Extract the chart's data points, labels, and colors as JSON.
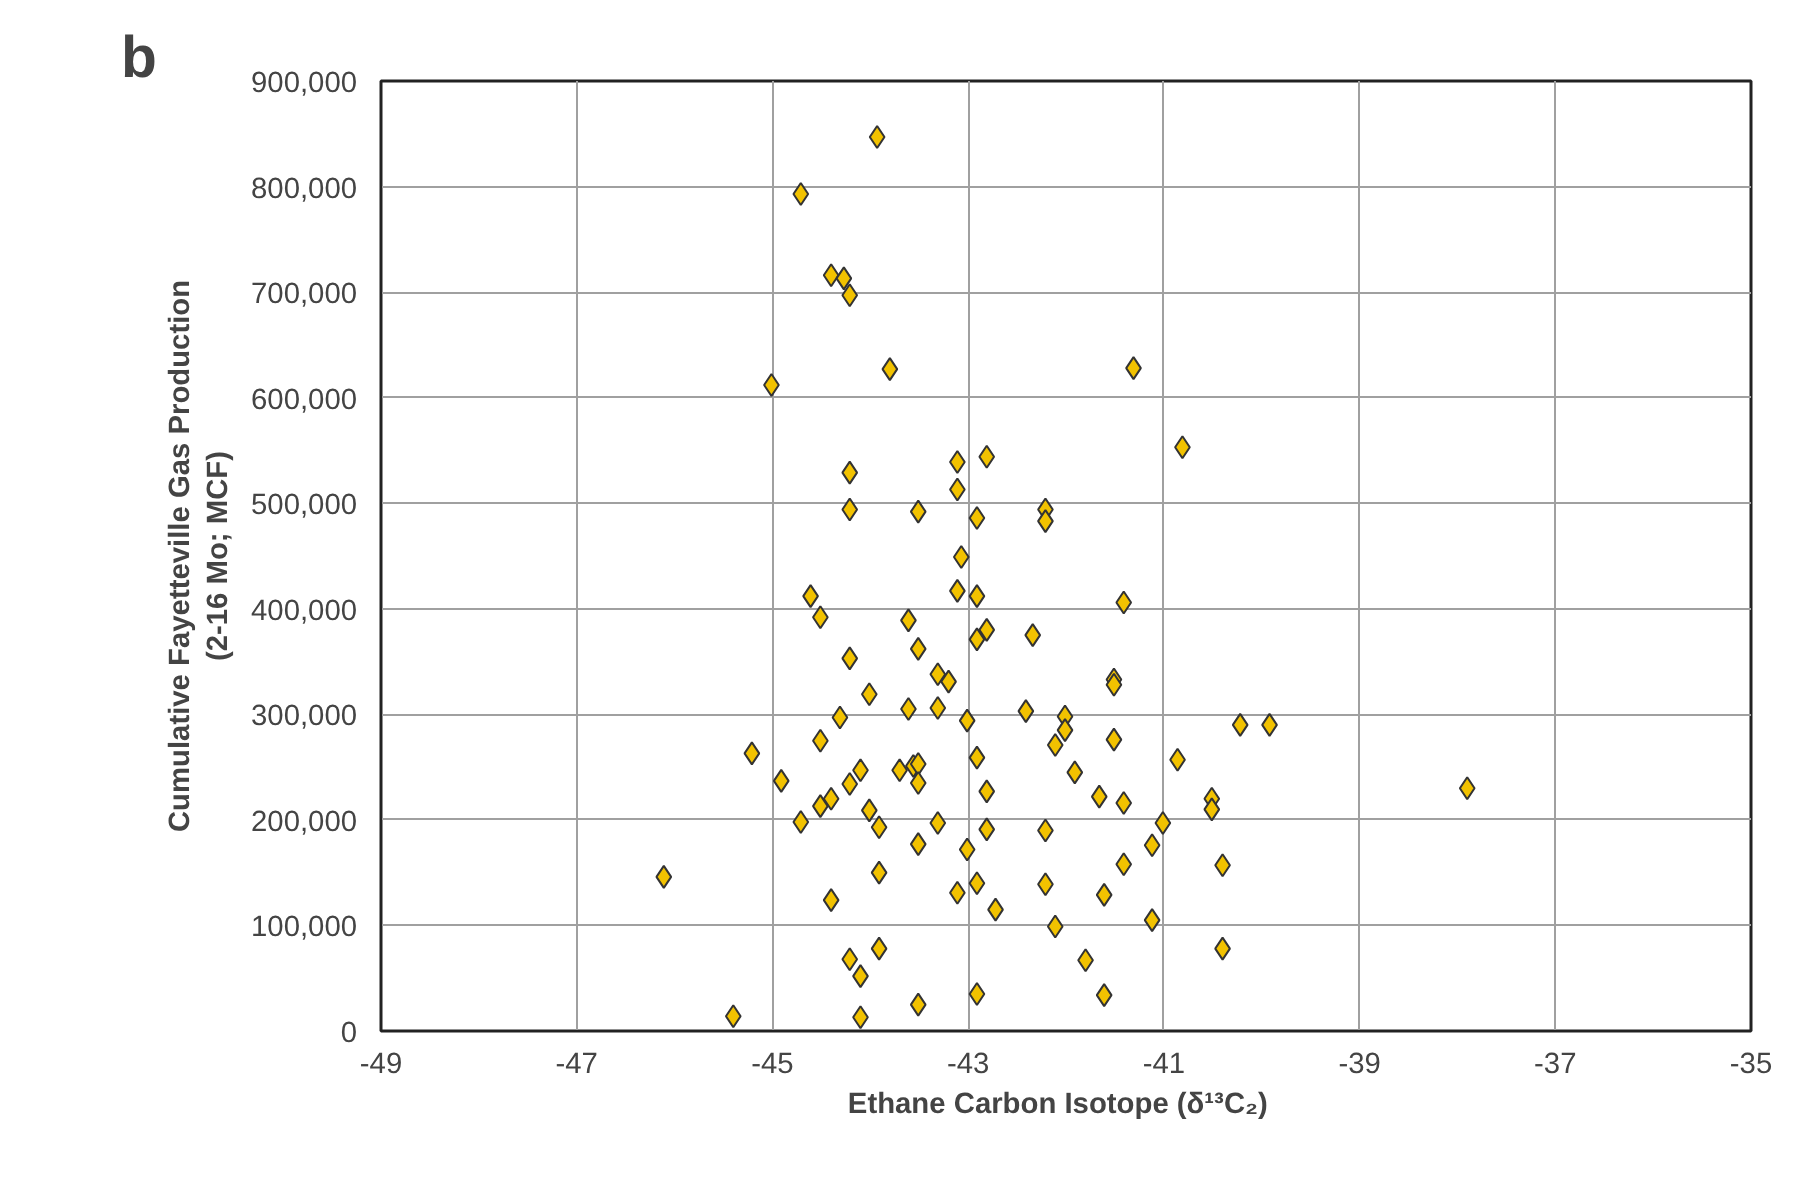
{
  "chart_data": {
    "type": "scatter",
    "title": "b",
    "xlabel": "Ethane Carbon Isotope   (δ¹³C₂)",
    "ylabel": "Cumulative Fayetteville Gas Production\n(2-16 Mo; MCF)",
    "xlim": [
      -49,
      -35
    ],
    "xticks": [
      -49,
      -47,
      -45,
      -43,
      -41,
      -39,
      -37,
      -35
    ],
    "ylim": [
      0,
      900000
    ],
    "yticks": [
      {
        "value": 0,
        "label": "0"
      },
      {
        "value": 100000,
        "label": "100,000"
      },
      {
        "value": 200000,
        "label": "200,000"
      },
      {
        "value": 300000,
        "label": "300,000"
      },
      {
        "value": 400000,
        "label": "400,000"
      },
      {
        "value": 500000,
        "label": "500,000"
      },
      {
        "value": 600000,
        "label": "600,000"
      },
      {
        "value": 700000,
        "label": "700,000"
      },
      {
        "value": 800000,
        "label": "800,000"
      },
      {
        "value": 900000,
        "label": "900,000"
      }
    ],
    "grid": true,
    "marker": "diamond",
    "series": [
      {
        "color": "#f2c200",
        "x": [
          -43.93,
          -44.71,
          -44.4,
          -44.27,
          -44.21,
          -45.01,
          -43.8,
          -41.31,
          -40.81,
          -43.11,
          -42.81,
          -44.21,
          -43.11,
          -44.21,
          -43.51,
          -42.91,
          -42.21,
          -42.21,
          -43.07,
          -44.61,
          -43.11,
          -42.91,
          -41.41,
          -44.51,
          -43.61,
          -42.81,
          -42.91,
          -42.34,
          -44.21,
          -43.51,
          -43.31,
          -43.2,
          -41.51,
          -41.51,
          -44.01,
          -44.31,
          -43.61,
          -43.31,
          -43.01,
          -42.41,
          -42.01,
          -42.01,
          -42.11,
          -40.22,
          -39.92,
          -45.21,
          -44.51,
          -41.51,
          -42.91,
          -40.86,
          -44.91,
          -44.1,
          -43.7,
          -43.56,
          -43.51,
          -44.21,
          -43.51,
          -41.91,
          -42.81,
          -37.9,
          -44.51,
          -44.4,
          -44.01,
          -44.71,
          -43.91,
          -43.31,
          -42.81,
          -42.21,
          -41.66,
          -41.41,
          -40.51,
          -40.51,
          -41.01,
          -43.51,
          -43.01,
          -41.12,
          -43.91,
          -41.41,
          -40.4,
          -46.11,
          -44.4,
          -43.11,
          -42.91,
          -42.21,
          -41.61,
          -42.72,
          -42.11,
          -41.12,
          -43.91,
          -44.21,
          -44.1,
          -41.8,
          -40.4,
          -45.4,
          -44.1,
          -43.51,
          -42.91,
          -41.61
        ],
        "values": [
          847000,
          793000,
          716000,
          713000,
          697000,
          612000,
          627000,
          628000,
          553000,
          539000,
          544000,
          529000,
          513000,
          494000,
          492000,
          486000,
          494000,
          483000,
          449000,
          412000,
          417000,
          412000,
          406000,
          392000,
          389000,
          380000,
          371000,
          375000,
          353000,
          362000,
          338000,
          331000,
          333000,
          328000,
          319000,
          297000,
          305000,
          306000,
          294000,
          303000,
          298000,
          285000,
          271000,
          290000,
          290000,
          263000,
          275000,
          276000,
          259000,
          257000,
          237000,
          247000,
          247000,
          251000,
          253000,
          234000,
          235000,
          245000,
          227000,
          230000,
          213000,
          220000,
          209000,
          198000,
          193000,
          197000,
          191000,
          190000,
          222000,
          216000,
          220000,
          210000,
          197000,
          177000,
          172000,
          176000,
          150000,
          158000,
          157000,
          146000,
          124000,
          131000,
          140000,
          139000,
          129000,
          115000,
          99000,
          105000,
          78000,
          68000,
          52000,
          67000,
          78000,
          14000,
          13000,
          25000,
          35000,
          34000
        ]
      }
    ]
  }
}
